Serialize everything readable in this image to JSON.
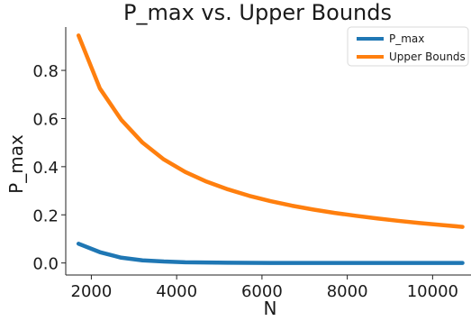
{
  "chart_data": {
    "type": "line",
    "title": "P_max vs. Upper Bounds",
    "xlabel": "N",
    "ylabel": "P_max",
    "xlim": [
      1400,
      10900
    ],
    "ylim": [
      -0.05,
      0.98
    ],
    "x_ticks": [
      2000,
      4000,
      6000,
      8000,
      10000
    ],
    "y_ticks": [
      0.0,
      0.2,
      0.4,
      0.6,
      0.8
    ],
    "x_tick_labels": [
      "2000",
      "4000",
      "6000",
      "8000",
      "10000"
    ],
    "y_tick_labels": [
      "0.0",
      "0.2",
      "0.4",
      "0.6",
      "0.8"
    ],
    "grid": false,
    "legend_position": "top-right",
    "x": [
      1700,
      2200,
      2700,
      3200,
      3700,
      4200,
      4700,
      5200,
      5700,
      6200,
      6700,
      7200,
      7700,
      8200,
      8700,
      9200,
      9700,
      10200,
      10700
    ],
    "series": [
      {
        "name": "P_max",
        "color": "#1f77b4",
        "values": [
          0.08,
          0.045,
          0.022,
          0.011,
          0.006,
          0.003,
          0.002,
          0.001,
          0.0005,
          0.0003,
          0.0002,
          0.0001,
          0.0001,
          0.0,
          0.0,
          0.0,
          0.0,
          0.0,
          0.0
        ]
      },
      {
        "name": "Upper Bounds",
        "color": "#ff7f0e",
        "values": [
          0.945,
          0.725,
          0.595,
          0.5,
          0.43,
          0.378,
          0.338,
          0.306,
          0.279,
          0.257,
          0.238,
          0.222,
          0.208,
          0.196,
          0.185,
          0.175,
          0.166,
          0.158,
          0.15
        ]
      }
    ]
  }
}
